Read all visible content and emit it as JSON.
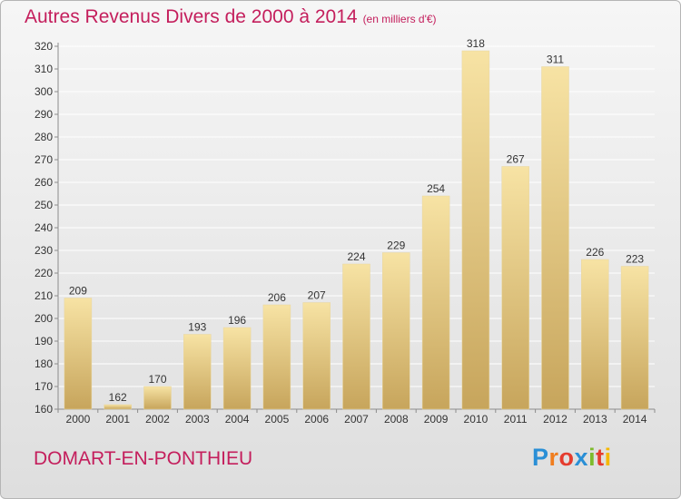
{
  "header": {
    "title": "Autres Revenus Divers de 2000 à 2014",
    "unit": "(en milliers d'€)"
  },
  "footer": {
    "commune": "DOMART-EN-PONTHIEU"
  },
  "logo": {
    "letters": [
      "P",
      "r",
      "o",
      "x",
      "i",
      "t",
      "i"
    ],
    "colors": [
      "#2a8fd6",
      "#f07d1e",
      "#e53c2e",
      "#2a8fd6",
      "#7dbb2c",
      "#e53c2e",
      "#f5b800"
    ]
  },
  "colors": {
    "bar_light": "#f7e3a4",
    "bar_dark": "#c7a55c",
    "text": "#c41e5c",
    "grid": "#ffffff",
    "axis": "#8c8c8c"
  },
  "chart_data": {
    "type": "bar",
    "title": "Autres Revenus Divers de 2000 à 2014",
    "categories": [
      "2000",
      "2001",
      "2002",
      "2003",
      "2004",
      "2005",
      "2006",
      "2007",
      "2008",
      "2009",
      "2010",
      "2011",
      "2012",
      "2013",
      "2014"
    ],
    "values": [
      209,
      162,
      170,
      193,
      196,
      206,
      207,
      224,
      229,
      254,
      318,
      267,
      311,
      226,
      223
    ],
    "ylim": [
      160,
      320
    ],
    "yticks": [
      160,
      170,
      180,
      190,
      200,
      210,
      220,
      230,
      240,
      250,
      260,
      270,
      280,
      290,
      300,
      310,
      320
    ],
    "xlabel": "",
    "ylabel": "",
    "grid": true,
    "legend": "none"
  }
}
